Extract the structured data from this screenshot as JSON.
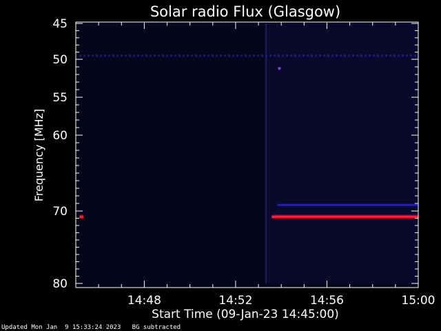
{
  "colors": {
    "background": "#000000",
    "plot_background": "#05051c",
    "axis": "#ffffff",
    "band_blue": "#2222aa",
    "band_red": "#ff2233",
    "band_edge": "#a0002a"
  },
  "chart_data": {
    "type": "heatmap",
    "title": "Solar radio Flux (Glasgow)",
    "xlabel": "Start Time (09-Jan-23 14:45:00)",
    "ylabel": "Frequency [MHz]",
    "x_range": [
      "14:45:00",
      "15:00:00"
    ],
    "x_ticks": [
      "14:48",
      "14:52",
      "14:56",
      "15:00"
    ],
    "y_axis_direction": "frequency increases downward",
    "y_range_mhz": [
      45,
      80
    ],
    "y_ticks": [
      45,
      50,
      55,
      60,
      70,
      80
    ],
    "y_scale": "nonlinear (compressed toward high frequency)",
    "features": [
      {
        "kind": "dotted horizontal line",
        "color": "blue",
        "frequency_mhz": 49.5,
        "time_start": "14:45:10",
        "time_end": "15:00:00"
      },
      {
        "kind": "horizontal line",
        "color": "blue",
        "frequency_mhz": 69.2,
        "time_start": "14:53:50",
        "time_end": "15:00:00"
      },
      {
        "kind": "strong horizontal band",
        "color": "red",
        "frequency_mhz": 70.8,
        "time_start": "14:53:35",
        "time_end": "15:00:00"
      },
      {
        "kind": "short strong segment",
        "color": "red",
        "frequency_mhz": 70.8,
        "time_start": "14:45:10",
        "time_end": "14:45:20"
      },
      {
        "kind": "vertical brightening",
        "color": "blue",
        "time": "14:53:20",
        "frequency_mhz": [
          45,
          80
        ]
      },
      {
        "kind": "dot",
        "color": "purple",
        "frequency_mhz": 51.2,
        "time": "14:53:55"
      }
    ]
  },
  "footer": {
    "updated": "Updated Mon Jan  9 15:33:24 2023",
    "note": "BG subtracted"
  }
}
